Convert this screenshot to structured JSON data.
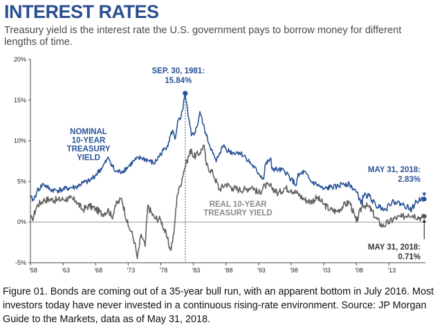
{
  "title": "INTEREST RATES",
  "subtitle": "Treasury yield is the interest rate the U.S. government pays to borrow money for different lengths of time.",
  "caption": "Figure 01. Bonds are coming out of a 35-year bull run, with an apparent bottom in July 2016. Most investors today have never invested in a continuous rising-rate environment.  Source: JP Morgan Guide to the Markets, data as of May 31, 2018.",
  "colors": {
    "nominal": "#2a5396",
    "real": "#606060",
    "title": "#2a4f8f",
    "zero_line": "#9a9a9a"
  },
  "chart_data": {
    "type": "line",
    "title": "INTEREST RATES",
    "xlabel": "",
    "ylabel": "",
    "xlim": [
      1958,
      2018.6
    ],
    "ylim": [
      -5,
      20
    ],
    "y_ticks": [
      -5,
      0,
      5,
      10,
      15,
      20
    ],
    "y_tick_labels": [
      "-5%",
      "0%",
      "5%",
      "10%",
      "15%",
      "20%"
    ],
    "x_ticks": [
      1958,
      1963,
      1968,
      1973,
      1978,
      1983,
      1988,
      1993,
      1998,
      2003,
      2008,
      2013
    ],
    "x_tick_labels": [
      "'58",
      "'63",
      "'68",
      "'73",
      "'78",
      "'83",
      "'88",
      "'93",
      "'98",
      "'03",
      "'08",
      "'13"
    ],
    "series": [
      {
        "name": "Nominal 10-Year Treasury Yield",
        "label_lines": [
          "NOMINAL",
          "10-YEAR",
          "TREASURY",
          "YIELD"
        ],
        "x": [
          1958,
          1958.5,
          1959,
          1960,
          1961,
          1962,
          1963,
          1964,
          1965,
          1966,
          1967,
          1968,
          1969,
          1970,
          1971,
          1972,
          1973,
          1974,
          1975,
          1976,
          1977,
          1978,
          1979,
          1979.8,
          1980.2,
          1980.6,
          1981.0,
          1981.4,
          1981.75,
          1982.2,
          1982.7,
          1983.2,
          1983.6,
          1984,
          1984.5,
          1985,
          1986,
          1986.5,
          1987,
          1987.7,
          1988,
          1989,
          1990,
          1991,
          1992,
          1993,
          1993.8,
          1994,
          1994.9,
          1995,
          1996,
          1997,
          1998,
          1998.8,
          1999,
          2000,
          2001,
          2002,
          2003,
          2004,
          2005,
          2006,
          2007,
          2008,
          2008.9,
          2009,
          2010,
          2011,
          2012,
          2012.6,
          2013,
          2014,
          2015,
          2016,
          2016.5,
          2017,
          2018,
          2018.42
        ],
        "values": [
          3.0,
          2.7,
          3.8,
          4.7,
          4.0,
          3.9,
          4.0,
          4.2,
          4.3,
          4.8,
          5.0,
          5.8,
          6.7,
          7.9,
          6.2,
          6.2,
          6.8,
          7.6,
          7.9,
          7.6,
          7.2,
          8.4,
          9.4,
          11.3,
          10.2,
          12.4,
          12.6,
          13.9,
          15.84,
          13.0,
          10.6,
          11.0,
          11.8,
          13.6,
          12.0,
          10.6,
          8.4,
          7.4,
          8.5,
          9.5,
          9.0,
          8.5,
          8.6,
          8.0,
          7.0,
          6.0,
          5.3,
          7.0,
          7.8,
          6.6,
          6.4,
          6.3,
          5.3,
          4.5,
          5.6,
          6.2,
          5.0,
          4.6,
          4.0,
          4.3,
          4.3,
          4.8,
          4.6,
          3.7,
          2.2,
          3.3,
          3.2,
          2.0,
          1.8,
          1.5,
          2.3,
          2.5,
          2.2,
          1.8,
          1.5,
          2.3,
          2.9,
          2.83
        ]
      },
      {
        "name": "Real 10-Year Treasury Yield",
        "label_lines": [
          "REAL 10-YEAR",
          "TREASURY YIELD"
        ],
        "x": [
          1958,
          1958.3,
          1959,
          1960,
          1961,
          1962,
          1963,
          1964,
          1965,
          1966,
          1967,
          1968,
          1969,
          1970,
          1970.5,
          1971,
          1972,
          1973,
          1973.5,
          1974,
          1974.4,
          1975,
          1975.6,
          1976,
          1977,
          1978,
          1979,
          1979.5,
          1980,
          1980.5,
          1981,
          1981.5,
          1982,
          1982.7,
          1983,
          1984,
          1984.6,
          1985,
          1986,
          1987,
          1988,
          1989,
          1990,
          1991,
          1992,
          1993,
          1994,
          1995,
          1996,
          1997,
          1998,
          1999,
          2000,
          2001,
          2002,
          2003,
          2004,
          2005,
          2006,
          2007,
          2008,
          2009,
          2010,
          2011,
          2012,
          2013,
          2014,
          2015,
          2016,
          2017,
          2018,
          2018.42
        ],
        "values": [
          0.5,
          0.3,
          2.0,
          2.7,
          2.8,
          2.7,
          2.8,
          2.9,
          2.6,
          1.5,
          2.0,
          1.6,
          1.0,
          1.5,
          0.5,
          2.0,
          2.9,
          -0.5,
          -1.2,
          -2.5,
          -4.5,
          -1.5,
          -3.0,
          2.0,
          0.5,
          0.3,
          -2.0,
          -3.5,
          -1.5,
          3.3,
          4.5,
          6.2,
          7.5,
          9.0,
          8.0,
          8.5,
          9.5,
          7.0,
          6.0,
          4.0,
          4.7,
          4.2,
          4.0,
          4.0,
          4.4,
          3.5,
          4.5,
          4.3,
          3.5,
          4.2,
          4.0,
          3.5,
          2.8,
          2.5,
          3.0,
          2.2,
          1.5,
          1.3,
          2.0,
          2.5,
          0.0,
          2.2,
          1.8,
          0.5,
          -0.5,
          0.0,
          0.5,
          0.6,
          1.0,
          0.8,
          0.5,
          0.71
        ]
      }
    ],
    "annotations": [
      {
        "key": "peak",
        "lines": [
          "SEP. 30, 1981:",
          "15.84%"
        ],
        "x": 1981.75,
        "y": 15.84
      },
      {
        "key": "nominal_end",
        "lines": [
          "MAY 31, 2018:",
          "2.83%"
        ],
        "x": 2018.42,
        "y": 2.83
      },
      {
        "key": "real_end",
        "lines": [
          "MAY 31, 2018:",
          "0.71%"
        ],
        "x": 2018.42,
        "y": 0.71
      }
    ]
  }
}
